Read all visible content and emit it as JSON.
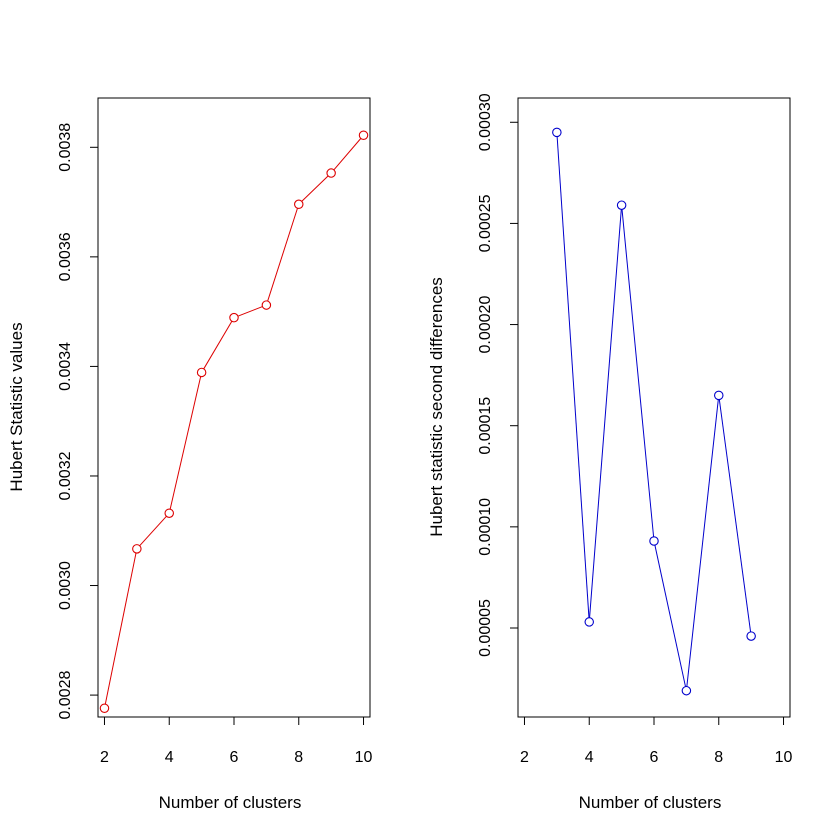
{
  "chart_data": [
    {
      "type": "line",
      "xlabel": "Number of clusters",
      "ylabel": "Hubert Statistic values",
      "color": "#dd0000",
      "xlim": [
        1.8,
        10.2
      ],
      "ylim": [
        0.00276,
        0.00389
      ],
      "x_ticks": [
        2,
        4,
        6,
        8,
        10
      ],
      "x_tick_labels": [
        "2",
        "4",
        "6",
        "8",
        "10"
      ],
      "y_ticks": [
        0.0028,
        0.003,
        0.0032,
        0.0034,
        0.0036,
        0.0038
      ],
      "y_tick_labels": [
        "0.0028",
        "0.0030",
        "0.0032",
        "0.0034",
        "0.0036",
        "0.0038"
      ],
      "x": [
        2,
        3,
        4,
        5,
        6,
        7,
        8,
        9,
        10
      ],
      "values": [
        0.002776,
        0.003067,
        0.003132,
        0.003389,
        0.003489,
        0.003512,
        0.003696,
        0.003753,
        0.003822
      ]
    },
    {
      "type": "line",
      "xlabel": "Number of clusters",
      "ylabel": "Hubert statistic second differences",
      "color": "#0000cc",
      "xlim": [
        1.8,
        10.2
      ],
      "ylim": [
        6e-06,
        0.000312
      ],
      "x_ticks": [
        2,
        4,
        6,
        8,
        10
      ],
      "x_tick_labels": [
        "2",
        "4",
        "6",
        "8",
        "10"
      ],
      "y_ticks": [
        5e-05,
        0.0001,
        0.00015,
        0.0002,
        0.00025,
        0.0003
      ],
      "y_tick_labels": [
        "0.00005",
        "0.00010",
        "0.00015",
        "0.00020",
        "0.00025",
        "0.00030"
      ],
      "x": [
        3,
        4,
        5,
        6,
        7,
        8,
        9
      ],
      "values": [
        0.000295,
        5.3e-05,
        0.000259,
        9.3e-05,
        1.9e-05,
        0.000165,
        4.6e-05
      ]
    }
  ]
}
